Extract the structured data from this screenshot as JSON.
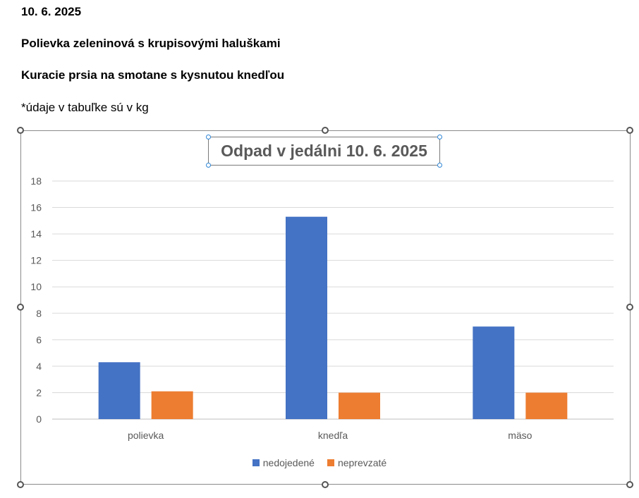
{
  "document": {
    "date_line": "10. 6. 2025",
    "soup_line": "Polievka zeleninová s krupisovými haluškami",
    "main_line": "Kuracie prsia na smotane s kysnutou knedľou",
    "note_line": "*údaje v tabuľke sú v kg"
  },
  "chart_data": {
    "type": "bar",
    "title": "Odpad v jedálni 10. 6. 2025",
    "categories": [
      "polievka",
      "knedľa",
      "mäso"
    ],
    "series": [
      {
        "name": "nedojedené",
        "color": "#4472c4",
        "values": [
          4.3,
          15.3,
          7.0
        ]
      },
      {
        "name": "neprevzaté",
        "color": "#ed7d31",
        "values": [
          2.1,
          2.0,
          2.0
        ]
      }
    ],
    "ylim": [
      0,
      18
    ],
    "yticks": [
      0,
      2,
      4,
      6,
      8,
      10,
      12,
      14,
      16,
      18
    ],
    "grid": true,
    "legend_position": "bottom"
  }
}
